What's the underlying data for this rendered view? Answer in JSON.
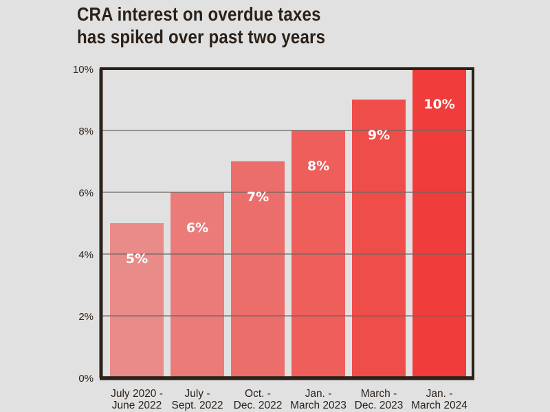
{
  "chart_data": {
    "type": "bar",
    "title": "CRA interest on overdue taxes has spiked over past two years",
    "title_lines": [
      "CRA interest on overdue taxes",
      "has spiked over past two years"
    ],
    "xlabel": "",
    "ylabel": "",
    "categories": [
      [
        "July 2020 -",
        "June 2022"
      ],
      [
        "July -",
        "Sept. 2022"
      ],
      [
        "Oct. -",
        "Dec. 2022"
      ],
      [
        "Jan. -",
        "March 2023"
      ],
      [
        "March -",
        "Dec. 2023"
      ],
      [
        "Jan. -",
        "March 2024"
      ]
    ],
    "values": [
      5,
      6,
      7,
      8,
      9,
      10
    ],
    "data_labels": [
      "5%",
      "6%",
      "7%",
      "8%",
      "9%",
      "10%"
    ],
    "bar_colors": [
      "#e98b89",
      "#ea7b79",
      "#ec6e6b",
      "#ee5e5b",
      "#ef4d4a",
      "#f03c3a"
    ],
    "ylim": [
      0,
      10
    ],
    "yticks": [
      0,
      2,
      4,
      6,
      8,
      10
    ],
    "ytick_labels": [
      "0%",
      "2%",
      "4%",
      "6%",
      "8%",
      "10%"
    ],
    "grid": true,
    "legend": "none",
    "frame_color": "#2b2119",
    "grid_color": "#6b6560"
  }
}
